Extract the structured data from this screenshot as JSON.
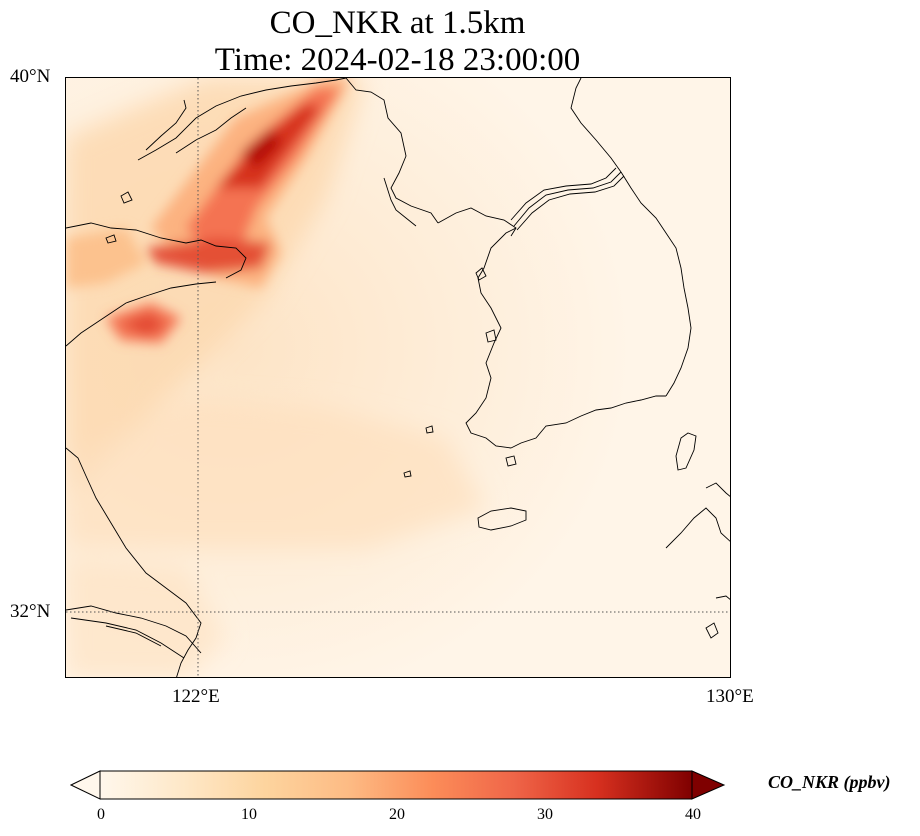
{
  "title": {
    "line1": "CO_NKR at 1.5km",
    "line2": "Time: 2024-02-18 23:00:00"
  },
  "axes": {
    "lat_ticks": [
      "40°N",
      "32°N"
    ],
    "lon_ticks": [
      "122°E",
      "130°E"
    ]
  },
  "colorbar": {
    "label": "CO_NKR (ppbv)",
    "ticks": [
      "0",
      "10",
      "20",
      "30",
      "40"
    ],
    "cmap": "OrRd",
    "extend": "both"
  },
  "map": {
    "projection": "PlateCarree",
    "extent": {
      "lon_min": 120.0,
      "lon_max": 130.0,
      "lat_min": 31.0,
      "lat_max": 40.0
    },
    "gridlines": {
      "lons": [
        122
      ],
      "lats": [
        32
      ],
      "style": "dotted"
    },
    "features": [
      "coastline",
      "jeju-island",
      "korean-peninsula",
      "shandong-peninsula",
      "liaodong-peninsula",
      "yangtze-estuary"
    ]
  },
  "field_hotspots": [
    {
      "name": "liaoning-plume",
      "level": "high",
      "approx_ppbv": 38
    },
    {
      "name": "shandong-north-coast",
      "level": "medium-high",
      "approx_ppbv": 28
    },
    {
      "name": "shandong-south",
      "level": "medium",
      "approx_ppbv": 22
    },
    {
      "name": "background",
      "level": "low",
      "approx_ppbv": 3
    }
  ]
}
